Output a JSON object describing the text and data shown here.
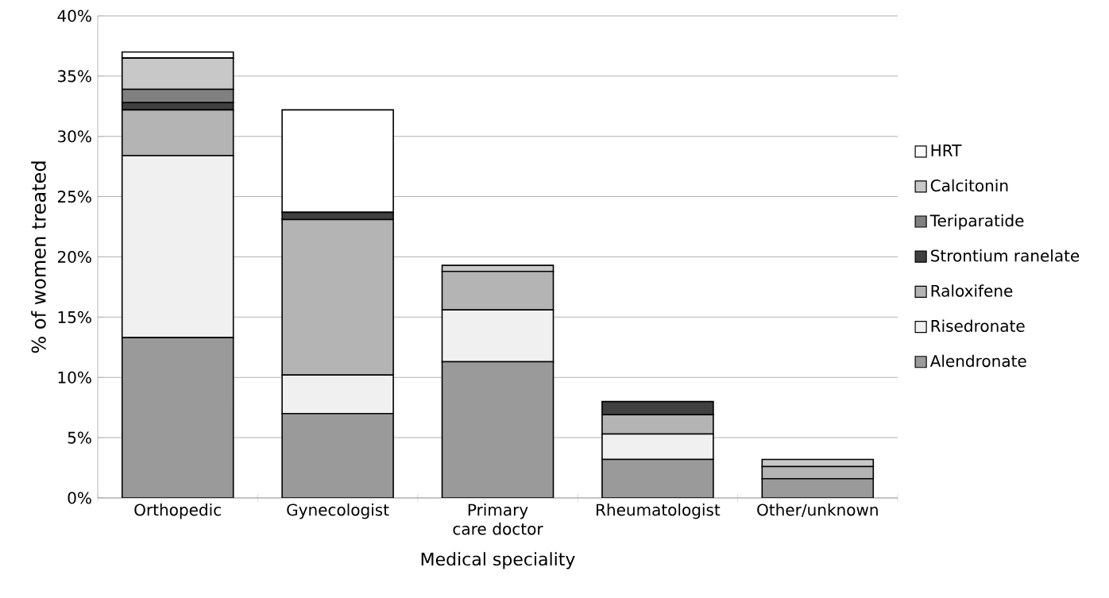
{
  "chart_data": {
    "type": "bar",
    "stacked": true,
    "xlabel": "Medical speciality",
    "ylabel": "% of women treated",
    "categories": [
      "Orthopedic",
      "Gynecologist",
      "Primary care doctor",
      "Rheumatologist",
      "Other/unknown"
    ],
    "series": [
      {
        "name": "Alendronate",
        "color": "#9a9a9a",
        "values": [
          13.3,
          7.0,
          11.3,
          3.2,
          1.6
        ]
      },
      {
        "name": "Risedronate",
        "color": "#f0f0f0",
        "values": [
          15.1,
          3.2,
          4.3,
          2.1,
          0
        ]
      },
      {
        "name": "Raloxifene",
        "color": "#b4b4b4",
        "values": [
          3.8,
          12.9,
          3.2,
          1.6,
          1.0
        ]
      },
      {
        "name": "Strontium ranelate",
        "color": "#404040",
        "values": [
          0.6,
          0.6,
          0,
          1.1,
          0
        ]
      },
      {
        "name": "Teriparatide",
        "color": "#808080",
        "values": [
          1.1,
          0,
          0,
          0,
          0
        ]
      },
      {
        "name": "Calcitonin",
        "color": "#c8c8c8",
        "values": [
          2.6,
          0,
          0.5,
          0,
          0.6
        ]
      },
      {
        "name": "HRT",
        "color": "#ffffff",
        "values": [
          0.5,
          8.5,
          0,
          0,
          0
        ]
      }
    ],
    "ylim": [
      0,
      40
    ],
    "yticks": [
      {
        "value": 0,
        "label": "0%"
      },
      {
        "value": 5,
        "label": "5%"
      },
      {
        "value": 10,
        "label": "10%"
      },
      {
        "value": 15,
        "label": "15%"
      },
      {
        "value": 20,
        "label": "20%"
      },
      {
        "value": 25,
        "label": "25%"
      },
      {
        "value": 30,
        "label": "30%"
      },
      {
        "value": 35,
        "label": "35%"
      },
      {
        "value": 40,
        "label": "40%"
      }
    ],
    "grid": "y",
    "legend": "right"
  }
}
